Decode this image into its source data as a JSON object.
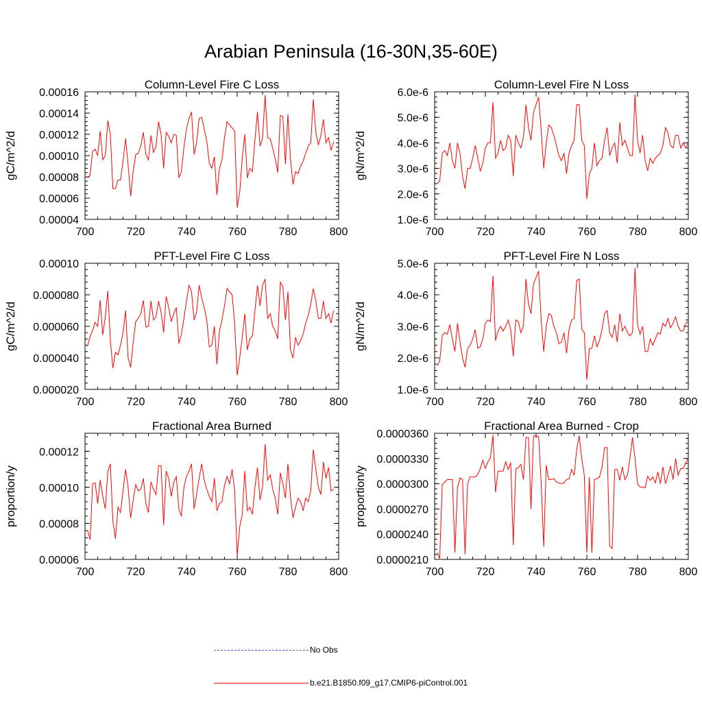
{
  "title": "Arabian Peninsula (16-30N,35-60E)",
  "colors": {
    "model": "#ff0000",
    "obs": "#4f4fcf",
    "axis": "#000000"
  },
  "legend": [
    {
      "label": "No Obs",
      "style": "dashed",
      "color": "#4f4fcf"
    },
    {
      "label": "b.e21.B1850.f09_g17.CMIP6-piControl.001",
      "style": "solid",
      "color": "#ff0000"
    }
  ],
  "chart_data": [
    {
      "type": "line",
      "title": "Column-Level Fire C Loss",
      "ylabel": "gC/m^2/d",
      "xlim": [
        700,
        800
      ],
      "ylim": [
        4e-05,
        0.00016
      ],
      "xticks": [
        700,
        720,
        740,
        760,
        780,
        800
      ],
      "xtick_labels": [
        "700",
        "720",
        "740",
        "760",
        "780",
        "800"
      ],
      "yticks": [
        4e-05,
        6e-05,
        8e-05,
        0.0001,
        0.00012,
        0.00014,
        0.00016
      ],
      "ytick_labels": [
        "0.00004",
        "0.00006",
        "0.00008",
        "0.00010",
        "0.00012",
        "0.00014",
        "0.00016"
      ],
      "series": [
        {
          "x_start": 701,
          "values": [
            7.9e-05,
            8.2e-05,
            0.000104,
            0.000106,
            0.0001,
            0.000123,
            9.6e-05,
            0.0001,
            0.000133,
            0.00012,
            6.9e-05,
            6.9e-05,
            7.7e-05,
            7.7e-05,
            9.5e-05,
            0.000116,
            9.1e-05,
            6.2e-05,
            8.5e-05,
            0.000101,
            0.000102,
            0.000109,
            0.000122,
            0.000101,
            9.6e-05,
            0.000119,
            0.000103,
            0.000109,
            0.000132,
            0.00012,
            8.8e-05,
            0.000122,
            0.000118,
            0.000112,
            0.00012,
            0.000119,
            7.9e-05,
            8.5e-05,
            0.000108,
            0.000125,
            0.000135,
            0.000141,
            0.000101,
            0.000112,
            0.000135,
            0.000136,
            0.000125,
            0.000114,
            9.3e-05,
            8.8e-05,
            9.9e-05,
            6.3e-05,
            8.8e-05,
            9.6e-05,
            0.000117,
            0.000132,
            0.000129,
            0.000126,
            0.000123,
            5.1e-05,
            6.6e-05,
            9.8e-05,
            0.00012,
            7.9e-05,
            8.8e-05,
            8.5e-05,
            0.000115,
            0.000141,
            0.000109,
            0.000116,
            0.000157,
            0.000117,
            0.000116,
            0.000107,
            9.7e-05,
            8.4e-05,
            0.000138,
            0.000137,
            9.2e-05,
            0.000139,
            9.7e-05,
            7.3e-05,
            8.5e-05,
            8.3e-05,
            9e-05,
            9.5e-05,
            0.000102,
            0.000109,
            0.000112,
            0.000153,
            0.000122,
            0.00011,
            0.000119,
            0.000134,
            0.000112,
            0.000117,
            0.000105,
            0.000113
          ]
        }
      ]
    },
    {
      "type": "line",
      "title": "Column-Level Fire N Loss",
      "ylabel": "gN/m^2/d",
      "xlim": [
        700,
        800
      ],
      "ylim": [
        1e-06,
        6e-06
      ],
      "xticks": [
        700,
        720,
        740,
        760,
        780,
        800
      ],
      "xtick_labels": [
        "700",
        "720",
        "740",
        "760",
        "780",
        "800"
      ],
      "yticks": [
        1e-06,
        2e-06,
        3e-06,
        4e-06,
        5e-06,
        6e-06
      ],
      "ytick_labels": [
        "1.0e-6",
        "2.0e-6",
        "3.0e-6",
        "4.0e-6",
        "5.0e-6",
        "6.0e-6"
      ],
      "series": [
        {
          "x_start": 701,
          "values": [
            2.4e-06,
            2.5e-06,
            3.6e-06,
            3.7e-06,
            3.5e-06,
            4e-06,
            3.3e-06,
            3e-06,
            4e-06,
            3.6e-06,
            2.7e-06,
            2.2e-06,
            3e-06,
            3e-06,
            3.4e-06,
            3.9e-06,
            3.4e-06,
            2.9e-06,
            3.2e-06,
            3.8e-06,
            4e-06,
            4e-06,
            5.6e-06,
            3.4e-06,
            3.6e-06,
            4.1e-06,
            3.7e-06,
            3.8e-06,
            4.3e-06,
            4.1e-06,
            2.7e-06,
            4.3e-06,
            4e-06,
            3.8e-06,
            4.2e-06,
            5.5e-06,
            4.6e-06,
            4.1e-06,
            5.2e-06,
            5.5e-06,
            5.8e-06,
            4.5e-06,
            3e-06,
            4e-06,
            4.7e-06,
            4.6e-06,
            4.3e-06,
            3.9e-06,
            3.5e-06,
            3.3e-06,
            3.6e-06,
            2.8e-06,
            3.6e-06,
            3.9e-06,
            4.1e-06,
            5.5e-06,
            5.5e-06,
            4.1e-06,
            3.9e-06,
            1.8e-06,
            2.8e-06,
            3e-06,
            4e-06,
            3.1e-06,
            3.3e-06,
            3.4e-06,
            4.1e-06,
            4.6e-06,
            3.5e-06,
            3.8e-06,
            4e-06,
            3.2e-06,
            4.8e-06,
            3.9e-06,
            4.1e-06,
            3.8e-06,
            3.5e-06,
            3.5e-06,
            5.9e-06,
            4.1e-06,
            3.6e-06,
            4.3e-06,
            3.3e-06,
            2.9e-06,
            3.4e-06,
            3.2e-06,
            3.4e-06,
            3.5e-06,
            3.6e-06,
            3.9e-06,
            4.6e-06,
            4.4e-06,
            3.9e-06,
            3.8e-06,
            4.3e-06,
            4.3e-06,
            3.8e-06,
            4e-06,
            3.8e-06,
            4e-06
          ]
        }
      ]
    },
    {
      "type": "line",
      "title": "PFT-Level Fire C Loss",
      "ylabel": "gC/m^2/d",
      "xlim": [
        700,
        800
      ],
      "ylim": [
        2e-05,
        0.0001
      ],
      "xticks": [
        700,
        720,
        740,
        760,
        780,
        800
      ],
      "xtick_labels": [
        "700",
        "720",
        "740",
        "760",
        "780",
        "800"
      ],
      "yticks": [
        2e-05,
        4e-05,
        6e-05,
        8e-05,
        0.0001
      ],
      "ytick_labels": [
        "0.000020",
        "0.000040",
        "0.000060",
        "0.000080",
        "0.00010"
      ],
      "series": [
        {
          "x_start": 701,
          "values": [
            4.75e-05,
            5.35e-05,
            5.75e-05,
            6.25e-05,
            6e-05,
            7.65e-05,
            5.45e-05,
            6.6e-05,
            8.25e-05,
            5.1e-05,
            3.35e-05,
            4.35e-05,
            4.2e-05,
            4.8e-05,
            5.6e-05,
            7e-05,
            4e-05,
            3.4e-05,
            5e-05,
            6.3e-05,
            6.5e-05,
            6.8e-05,
            7.65e-05,
            5.95e-05,
            6e-05,
            7.6e-05,
            6.4e-05,
            6.6e-05,
            7.6e-05,
            6.9e-05,
            5.6e-05,
            7.9e-05,
            7.2e-05,
            6.3e-05,
            6.8e-05,
            7.2e-05,
            4.9e-05,
            5.5e-05,
            6.5e-05,
            7.6e-05,
            8.6e-05,
            8.2e-05,
            6.4e-05,
            6.9e-05,
            8.6e-05,
            7.8e-05,
            7.2e-05,
            6.4e-05,
            4.7e-05,
            4.8e-05,
            6e-05,
            3.6e-05,
            5.7e-05,
            6.4e-05,
            7.3e-05,
            8.4e-05,
            8.2e-05,
            8e-05,
            6.2e-05,
            2.9e-05,
            4e-05,
            5.3e-05,
            6.8e-05,
            4.5e-05,
            5.2e-05,
            5.4e-05,
            7e-05,
            8.6e-05,
            7.3e-05,
            8.6e-05,
            9e-05,
            6.5e-05,
            6.8e-05,
            6e-05,
            5.7e-05,
            5.2e-05,
            8.8e-05,
            8.5e-05,
            6.4e-05,
            8.2e-05,
            4.5e-05,
            4e-05,
            5.3e-05,
            4.8e-05,
            5.1e-05,
            5.5e-05,
            6.2e-05,
            6.7e-05,
            7.4e-05,
            8.4e-05,
            7.6e-05,
            6.5e-05,
            6.5e-05,
            7.6e-05,
            6.5e-05,
            6.8e-05,
            6.2e-05,
            7e-05
          ]
        }
      ]
    },
    {
      "type": "line",
      "title": "PFT-Level Fire N Loss",
      "ylabel": "gN/m^2/d",
      "xlim": [
        700,
        800
      ],
      "ylim": [
        1e-06,
        5e-06
      ],
      "xticks": [
        700,
        720,
        740,
        760,
        780,
        800
      ],
      "xtick_labels": [
        "700",
        "720",
        "740",
        "760",
        "780",
        "800"
      ],
      "yticks": [
        1e-06,
        2e-06,
        3e-06,
        4e-06,
        5e-06
      ],
      "ytick_labels": [
        "1.0e-6",
        "2.0e-6",
        "3.0e-6",
        "4.0e-6",
        "5.0e-6"
      ],
      "series": [
        {
          "x_start": 701,
          "values": [
            1.75e-06,
            1.9e-06,
            2.7e-06,
            2.8e-06,
            2.75e-06,
            3.05e-06,
            2.6e-06,
            2.2e-06,
            3.1e-06,
            2.5e-06,
            2e-06,
            1.7e-06,
            2.3e-06,
            2.4e-06,
            2.6e-06,
            2.9e-06,
            2.3e-06,
            2.35e-06,
            2.6e-06,
            3.1e-06,
            3.2e-06,
            3.15e-06,
            4.6e-06,
            2.55e-06,
            2.85e-06,
            3e-06,
            2.85e-06,
            3e-06,
            3.2e-06,
            2.9e-06,
            2.05e-06,
            3.2e-06,
            3.15e-06,
            2.8e-06,
            3e-06,
            4.5e-06,
            3.7e-06,
            3.4e-06,
            4.35e-06,
            4.55e-06,
            4.75e-06,
            3.2e-06,
            2.2e-06,
            3e-06,
            3.4e-06,
            3.35e-06,
            3e-06,
            2.8e-06,
            2.45e-06,
            2.5e-06,
            2.8e-06,
            2.15e-06,
            2.9e-06,
            3.2e-06,
            3.25e-06,
            4.45e-06,
            4.5e-06,
            2.9e-06,
            2.8e-06,
            1.3e-06,
            2.3e-06,
            2.3e-06,
            2.7e-06,
            2.35e-06,
            2.55e-06,
            2.9e-06,
            3.4e-06,
            3.5e-06,
            2.8e-06,
            2.65e-06,
            3.05e-06,
            2.5e-06,
            3.4e-06,
            2.85e-06,
            3e-06,
            2.8e-06,
            2.7e-06,
            2.8e-06,
            4.85e-06,
            3.05e-06,
            2.75e-06,
            3e-06,
            2.2e-06,
            2.2e-06,
            2.6e-06,
            2.4e-06,
            2.6e-06,
            2.8e-06,
            2.75e-06,
            3.1e-06,
            3e-06,
            3.25e-06,
            2.95e-06,
            3.1e-06,
            3.3e-06,
            3e-06,
            2.85e-06,
            2.85e-06,
            3.1e-06,
            3.15e-06
          ]
        }
      ]
    },
    {
      "type": "line",
      "title": "Fractional Area Burned",
      "ylabel": "proportion/y",
      "xlim": [
        700,
        800
      ],
      "ylim": [
        6e-05,
        0.00013
      ],
      "xticks": [
        700,
        720,
        740,
        760,
        780,
        800
      ],
      "xtick_labels": [
        "700",
        "720",
        "740",
        "760",
        "780",
        "800"
      ],
      "yticks": [
        6e-05,
        8e-05,
        0.0001,
        0.00012
      ],
      "ytick_labels": [
        "0.00006",
        "0.00008",
        "0.00010",
        "0.00012"
      ],
      "series": [
        {
          "x_start": 701,
          "values": [
            7.6e-05,
            7.1e-05,
            0.000102,
            0.0001025,
            9.1e-05,
            0.000104,
            9.5e-05,
            8.8e-05,
            0.000109,
            0.000113,
            8.1e-05,
            7.15e-05,
            8.9e-05,
            8.6e-05,
            9.8e-05,
            0.00011,
            0.0001,
            8.3e-05,
            9.3e-05,
            0.0001015,
            9.8e-05,
            9.9e-05,
            0.000105,
            9.1e-05,
            8.6e-05,
            0.000103,
            9.9e-05,
            9.6e-05,
            0.000112,
            0.000112,
            7.9e-05,
            0.000109,
            0.000105,
            9.5e-05,
            0.000103,
            0.000106,
            8.8e-05,
            8.4e-05,
            0.0001,
            0.000106,
            0.000109,
            0.000113,
            8.8e-05,
            9.6e-05,
            0.000105,
            0.000113,
            0.000104,
            9.9e-05,
            9.5e-05,
            9.2e-05,
            0.000105,
            8.7e-05,
            9.1e-05,
            9.2e-05,
            0.000101,
            0.000106,
            0.000102,
            0.00011,
            9.8e-05,
            6.2e-05,
            7.8e-05,
            8.5e-05,
            0.000109,
            8.7e-05,
            8.9e-05,
            8.5e-05,
            0.0001,
            0.000111,
            9.3e-05,
            0.0001,
            0.000124,
            0.000104,
            0.000107,
            9.9e-05,
            9.4e-05,
            8.5e-05,
            0.000108,
            0.000102,
            9.4e-05,
            0.000113,
            9.5e-05,
            8.3e-05,
            8.9e-05,
            9.4e-05,
            9.2e-05,
            8.7e-05,
            9.4e-05,
            9.2e-05,
            9.8e-05,
            0.000121,
            0.00011,
            0.0001,
            9.6e-05,
            0.000114,
            0.000105,
            0.000111,
            9.8e-05,
            9.9e-05
          ]
        }
      ]
    },
    {
      "type": "line",
      "title": "Fractional Area Burned - Crop",
      "ylabel": "proportion/y",
      "xlim": [
        700,
        800
      ],
      "ylim": [
        2.1e-05,
        3.6e-05
      ],
      "xticks": [
        700,
        720,
        740,
        760,
        780,
        800
      ],
      "xtick_labels": [
        "700",
        "720",
        "740",
        "760",
        "780",
        "800"
      ],
      "yticks": [
        2.1e-05,
        2.4e-05,
        2.7e-05,
        3e-05,
        3.3e-05,
        3.6e-05
      ],
      "ytick_labels": [
        "0.0000210",
        "0.0000240",
        "0.0000270",
        "0.0000300",
        "0.0000330",
        "0.0000360"
      ],
      "series": [
        {
          "x_start": 701,
          "values": [
            2.18e-05,
            2.11e-05,
            2.99e-05,
            3.02e-05,
            3.05e-05,
            3.05e-05,
            3.05e-05,
            2.18e-05,
            2.95e-05,
            3.07e-05,
            3.05e-05,
            2.16e-05,
            3e-05,
            3.08e-05,
            3.08e-05,
            3.08e-05,
            3.11e-05,
            3.18e-05,
            3.28e-05,
            3.18e-05,
            3.26e-05,
            3.31e-05,
            3.58e-05,
            2.9e-05,
            3.15e-05,
            3.15e-05,
            3.15e-05,
            3.26e-05,
            3.17e-05,
            3.25e-05,
            2.27e-05,
            3.18e-05,
            3.19e-05,
            3.23e-05,
            3.05e-05,
            3.55e-05,
            3.55e-05,
            2.7e-05,
            3.57e-05,
            3.57e-05,
            3.56e-05,
            3.01e-05,
            2.25e-05,
            3.22e-05,
            3.05e-05,
            3.05e-05,
            3.06e-05,
            3.02e-05,
            3.01e-05,
            3e-05,
            3.01e-05,
            3.05e-05,
            3.06e-05,
            3.17e-05,
            3.1e-05,
            3.41e-05,
            3.57e-05,
            3.3e-05,
            3.1e-05,
            2.18e-05,
            3.08e-05,
            2.18e-05,
            3.05e-05,
            3.06e-05,
            3.08e-05,
            3.2e-05,
            3.43e-05,
            3.43e-05,
            2.26e-05,
            2.23e-05,
            3.17e-05,
            3.17e-05,
            3.04e-05,
            3.2e-05,
            3.05e-05,
            3.1e-05,
            3.3e-05,
            3.55e-05,
            3.3e-05,
            3e-05,
            2.96e-05,
            2.96e-05,
            2.95e-05,
            3.09e-05,
            3.04e-05,
            3.08e-05,
            3.01e-05,
            3.14e-05,
            3e-05,
            3.2e-05,
            3e-05,
            3.1e-05,
            3.21e-05,
            3.05e-05,
            3.3e-05,
            3.1e-05,
            3.18e-05,
            3.18e-05,
            3.25e-05,
            3.3e-05
          ]
        }
      ]
    }
  ]
}
